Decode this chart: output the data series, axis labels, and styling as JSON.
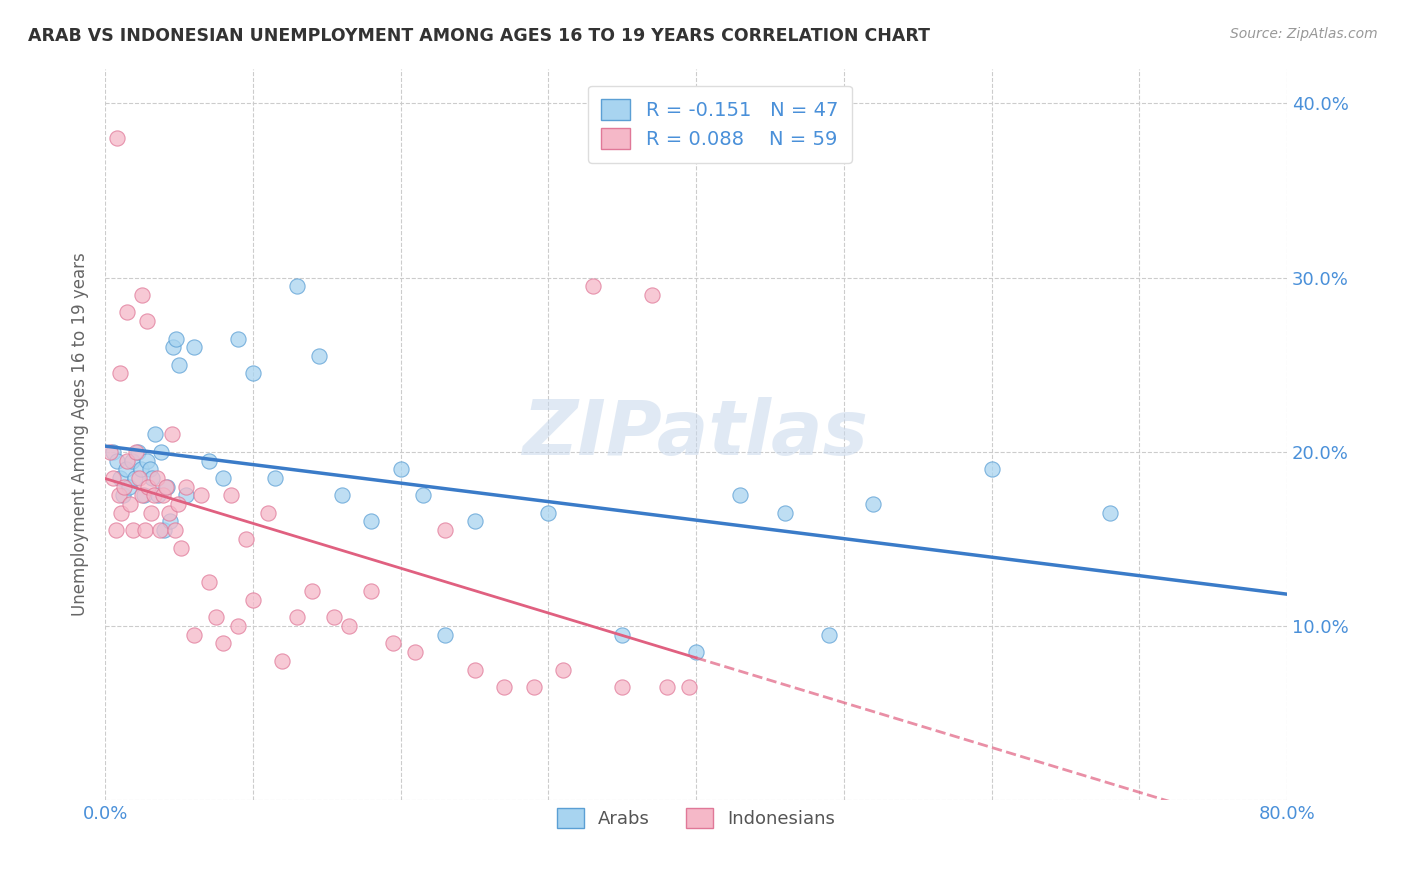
{
  "title": "ARAB VS INDONESIAN UNEMPLOYMENT AMONG AGES 16 TO 19 YEARS CORRELATION CHART",
  "source": "Source: ZipAtlas.com",
  "ylabel": "Unemployment Among Ages 16 to 19 years",
  "xlim": [
    0.0,
    0.8
  ],
  "ylim": [
    0.0,
    0.42
  ],
  "xtick_positions": [
    0.0,
    0.1,
    0.2,
    0.3,
    0.4,
    0.5,
    0.6,
    0.7,
    0.8
  ],
  "xticklabels": [
    "0.0%",
    "",
    "",
    "",
    "",
    "",
    "",
    "",
    "80.0%"
  ],
  "ytick_positions": [
    0.0,
    0.1,
    0.2,
    0.3,
    0.4
  ],
  "yticklabels_right": [
    "",
    "10.0%",
    "20.0%",
    "30.0%",
    "40.0%"
  ],
  "arab_R": -0.151,
  "arab_N": 47,
  "indo_R": 0.088,
  "indo_N": 59,
  "arab_color": "#a8d4f0",
  "indo_color": "#f5b8c8",
  "arab_edge_color": "#5b9fd4",
  "indo_edge_color": "#e07898",
  "arab_line_color": "#3a7bc8",
  "indo_line_color": "#e06080",
  "watermark": "ZIPatlas",
  "legend_entries": [
    "Arabs",
    "Indonesians"
  ],
  "arab_x": [
    0.005,
    0.008,
    0.01,
    0.012,
    0.014,
    0.016,
    0.018,
    0.02,
    0.022,
    0.024,
    0.026,
    0.028,
    0.03,
    0.032,
    0.034,
    0.036,
    0.038,
    0.04,
    0.042,
    0.044,
    0.046,
    0.048,
    0.05,
    0.055,
    0.06,
    0.07,
    0.08,
    0.09,
    0.1,
    0.115,
    0.13,
    0.145,
    0.16,
    0.18,
    0.2,
    0.215,
    0.23,
    0.25,
    0.3,
    0.35,
    0.4,
    0.43,
    0.46,
    0.49,
    0.52,
    0.6,
    0.68
  ],
  "arab_y": [
    0.2,
    0.195,
    0.185,
    0.175,
    0.19,
    0.18,
    0.195,
    0.185,
    0.2,
    0.19,
    0.175,
    0.195,
    0.19,
    0.185,
    0.21,
    0.175,
    0.2,
    0.155,
    0.18,
    0.16,
    0.26,
    0.265,
    0.25,
    0.175,
    0.26,
    0.195,
    0.185,
    0.265,
    0.245,
    0.185,
    0.295,
    0.255,
    0.175,
    0.16,
    0.19,
    0.175,
    0.095,
    0.16,
    0.165,
    0.095,
    0.085,
    0.175,
    0.165,
    0.095,
    0.17,
    0.19,
    0.165
  ],
  "indo_x": [
    0.003,
    0.005,
    0.007,
    0.009,
    0.011,
    0.013,
    0.015,
    0.017,
    0.019,
    0.021,
    0.023,
    0.025,
    0.027,
    0.029,
    0.031,
    0.033,
    0.035,
    0.037,
    0.039,
    0.041,
    0.043,
    0.045,
    0.047,
    0.049,
    0.051,
    0.055,
    0.06,
    0.065,
    0.07,
    0.075,
    0.08,
    0.085,
    0.09,
    0.095,
    0.1,
    0.11,
    0.12,
    0.13,
    0.14,
    0.155,
    0.165,
    0.18,
    0.195,
    0.21,
    0.23,
    0.25,
    0.27,
    0.29,
    0.31,
    0.33,
    0.35,
    0.37,
    0.395,
    0.025,
    0.028,
    0.015,
    0.01,
    0.38,
    0.008
  ],
  "indo_y": [
    0.2,
    0.185,
    0.155,
    0.175,
    0.165,
    0.18,
    0.195,
    0.17,
    0.155,
    0.2,
    0.185,
    0.175,
    0.155,
    0.18,
    0.165,
    0.175,
    0.185,
    0.155,
    0.175,
    0.18,
    0.165,
    0.21,
    0.155,
    0.17,
    0.145,
    0.18,
    0.095,
    0.175,
    0.125,
    0.105,
    0.09,
    0.175,
    0.1,
    0.15,
    0.115,
    0.165,
    0.08,
    0.105,
    0.12,
    0.105,
    0.1,
    0.12,
    0.09,
    0.085,
    0.155,
    0.075,
    0.065,
    0.065,
    0.075,
    0.295,
    0.065,
    0.29,
    0.065,
    0.29,
    0.275,
    0.28,
    0.245,
    0.065,
    0.38
  ]
}
